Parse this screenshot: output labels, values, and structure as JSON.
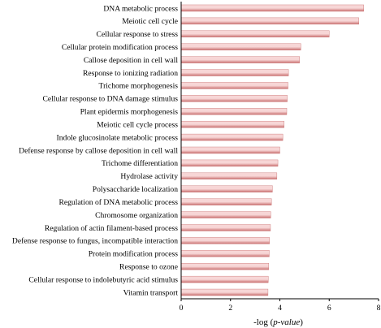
{
  "chart_data": {
    "type": "bar",
    "orientation": "horizontal",
    "categories": [
      "DNA metabolic process",
      "Meiotic cell cycle",
      "Cellular response to stress",
      "Cellular protein modification process",
      "Callose deposition in cell wall",
      "Response to ionizing radiation",
      "Trichome morphogenesis",
      "Cellular response to DNA damage stimulus",
      "Plant epidermis morphogenesis",
      "Meiotic cell cycle process",
      "Indole glucosinolate metabolic process",
      "Defense response by callose deposition in cell wall",
      "Trichome differentiation",
      "Hydrolase activity",
      "Polysaccharide localization",
      "Regulation of DNA metabolic process",
      "Chromosome organization",
      "Regulation of actin filament-based process",
      "Defense response to fungus, incompatible interaction",
      "Protein modification process",
      "Response to ozone",
      "Cellular response to indolebutyric acid stimulus",
      "Vitamin transport"
    ],
    "values": [
      7.4,
      7.2,
      6.0,
      4.85,
      4.8,
      4.35,
      4.33,
      4.3,
      4.28,
      4.17,
      4.12,
      4.0,
      3.92,
      3.88,
      3.7,
      3.66,
      3.63,
      3.62,
      3.58,
      3.57,
      3.55,
      3.53,
      3.52
    ],
    "xlabel_prefix": "-log (",
    "xlabel_italic": "p-value",
    "xlabel_suffix": ")",
    "xlim": [
      0,
      8
    ],
    "xticks": [
      0,
      2,
      4,
      6,
      8
    ],
    "grid": false,
    "legend": "none",
    "bar_color_light": "#f7d6d6",
    "bar_color_dark": "#c97070"
  }
}
